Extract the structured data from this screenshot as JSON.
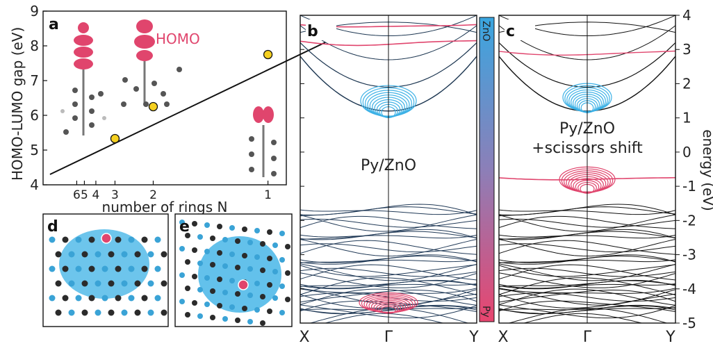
{
  "figure": {
    "panel_a": {
      "label": "a",
      "homo_label": "HOMO"
    },
    "panel_b": {
      "label": "b",
      "annotation": "Py/ZnO"
    },
    "panel_c": {
      "label": "c",
      "annotation_line1": "Py/ZnO",
      "annotation_line2": "+scissors shift"
    },
    "panel_d": {
      "label": "d"
    },
    "panel_e": {
      "label": "e"
    },
    "colorbar": {
      "top_label": "ZnO",
      "bottom_label": "Py",
      "top_color": "#3aa6e0",
      "bottom_color": "#e8456f"
    },
    "colors": {
      "py": "#e0456d",
      "zno": "#3cb1e6",
      "marker": "#f5d020",
      "line": "#111111"
    }
  },
  "chart_data": [
    {
      "type": "scatter",
      "panel": "a",
      "xlabel": "number of rings N",
      "ylabel": "HOMO-LUMO gap (eV)",
      "ylim": [
        4,
        9
      ],
      "yticks": [
        4,
        5,
        6,
        7,
        8,
        9
      ],
      "xticks": [
        {
          "label": "6",
          "N": 6
        },
        {
          "label": "5",
          "N": 5
        },
        {
          "label": "4",
          "N": 4
        },
        {
          "label": "3",
          "N": 3
        },
        {
          "label": "2",
          "N": 2
        },
        {
          "label": "1",
          "N": 1
        }
      ],
      "points": [
        {
          "N": 3,
          "gap": 5.33
        },
        {
          "N": 2,
          "gap": 6.25
        },
        {
          "N": 1,
          "gap": 7.75
        }
      ],
      "fit_line": [
        {
          "N": 20,
          "gap": 4.3
        },
        {
          "N": 0.8,
          "gap": 8.1
        }
      ]
    },
    {
      "type": "line",
      "panel": "b",
      "xticks": [
        "X",
        "Γ",
        "Y"
      ],
      "ylim": [
        -5,
        4
      ],
      "bands": "band structure projected on Py (red) and ZnO (blue)"
    },
    {
      "type": "line",
      "panel": "c",
      "xticks": [
        "X",
        "Γ",
        "Y"
      ],
      "ylabel": "energy (eV)",
      "ylim": [
        -5,
        4
      ],
      "yticks": [
        -5,
        -4,
        -3,
        -2,
        -1,
        0,
        1,
        2,
        3,
        4
      ]
    }
  ]
}
